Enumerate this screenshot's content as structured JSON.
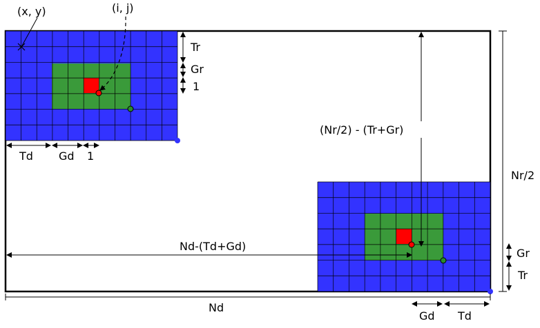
{
  "labels": {
    "xy": "(x, y)",
    "ij": "(i, j)",
    "tr_top": "Tr",
    "gr_top": "Gr",
    "one_right": "1",
    "td_left": "Td",
    "gd_left": "Gd",
    "one_bottom": "1",
    "center_formula": "(Nr/2) - (Tr+Gr)",
    "nr_half": "Nr/2",
    "nd_formula": "Nd-(Td+Gd)",
    "gr_right": "Gr",
    "tr_right": "Tr",
    "nd": "Nd",
    "gd_bottom": "Gd",
    "td_bottom": "Td"
  },
  "colors": {
    "training_cells": "#3333ff",
    "guard_cells": "#3a9a3a",
    "cell_under_test": "#ff0000",
    "outline": "#000000"
  }
}
